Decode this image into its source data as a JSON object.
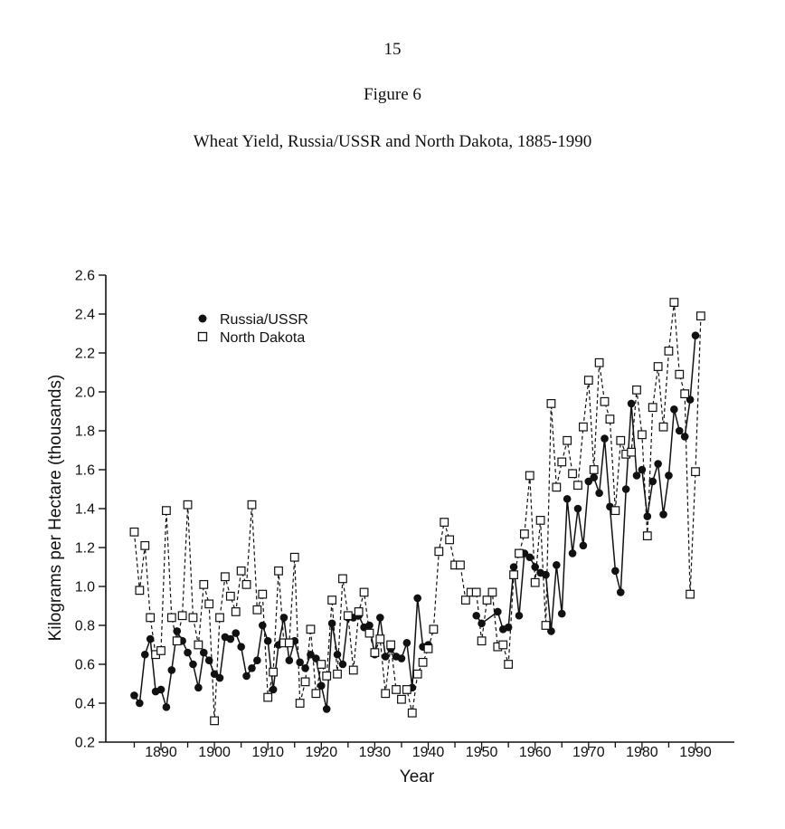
{
  "page": {
    "page_number": "15",
    "figure_label": "Figure 6",
    "figure_title": "Wheat Yield, Russia/USSR and North Dakota, 1885-1990"
  },
  "chart_data": {
    "type": "line",
    "title": "Wheat Yield, Russia/USSR and North Dakota, 1885-1990",
    "xlabel": "Year",
    "ylabel": "Kilograms per Hectare (thousands)",
    "xlim": [
      1880,
      1995
    ],
    "ylim": [
      0.2,
      2.6
    ],
    "x_ticks": [
      1890,
      1900,
      1910,
      1920,
      1930,
      1940,
      1950,
      1960,
      1970,
      1980,
      1990
    ],
    "x_tick_labels": [
      "1890",
      "1900",
      "1910",
      "1920",
      "1930",
      "1940",
      "1950",
      "1960",
      "1970",
      "1980",
      "1990"
    ],
    "y_ticks": [
      0.2,
      0.4,
      0.6,
      0.8,
      1.0,
      1.2,
      1.4,
      1.6,
      1.8,
      2.0,
      2.2,
      2.4,
      2.6
    ],
    "y_tick_labels": [
      "0.2",
      "0.4",
      "0.6",
      "0.8",
      "1.0",
      "1.2",
      "1.4",
      "1.6",
      "1.8",
      "2.0",
      "2.2",
      "2.4",
      "2.6"
    ],
    "legend_position": "top-left",
    "series": [
      {
        "name": "Russia/USSR",
        "marker": "filled-circle",
        "line": "solid",
        "color": "#111111",
        "points": [
          [
            1885,
            0.44
          ],
          [
            1886,
            0.4
          ],
          [
            1887,
            0.65
          ],
          [
            1888,
            0.73
          ],
          [
            1889,
            0.46
          ],
          [
            1890,
            0.47
          ],
          [
            1891,
            0.38
          ],
          [
            1892,
            0.57
          ],
          [
            1893,
            0.77
          ],
          [
            1894,
            0.72
          ],
          [
            1895,
            0.66
          ],
          [
            1896,
            0.6
          ],
          [
            1897,
            0.48
          ],
          [
            1898,
            0.66
          ],
          [
            1899,
            0.62
          ],
          [
            1900,
            0.55
          ],
          [
            1901,
            0.53
          ],
          [
            1902,
            0.74
          ],
          [
            1903,
            0.73
          ],
          [
            1904,
            0.76
          ],
          [
            1905,
            0.69
          ],
          [
            1906,
            0.54
          ],
          [
            1907,
            0.58
          ],
          [
            1908,
            0.62
          ],
          [
            1909,
            0.8
          ],
          [
            1910,
            0.72
          ],
          [
            1911,
            0.47
          ],
          [
            1912,
            0.7
          ],
          [
            1913,
            0.84
          ],
          [
            1914,
            0.62
          ],
          [
            1915,
            0.72
          ],
          [
            1916,
            0.61
          ],
          [
            1917,
            0.58
          ],
          [
            1918,
            0.65
          ],
          [
            1919,
            0.63
          ],
          [
            1920,
            0.49
          ],
          [
            1921,
            0.37
          ],
          [
            1922,
            0.81
          ],
          [
            1923,
            0.65
          ],
          [
            1924,
            0.6
          ],
          [
            1925,
            0.84
          ],
          [
            1926,
            0.84
          ],
          [
            1927,
            0.85
          ],
          [
            1928,
            0.79
          ],
          [
            1929,
            0.8
          ],
          [
            1930,
            0.65
          ],
          [
            1931,
            0.84
          ],
          [
            1932,
            0.64
          ],
          [
            1933,
            0.68
          ],
          [
            1934,
            0.64
          ],
          [
            1935,
            0.63
          ],
          [
            1936,
            0.71
          ],
          [
            1937,
            0.48
          ],
          [
            1938,
            0.94
          ],
          [
            1939,
            0.69
          ],
          [
            1940,
            0.7
          ],
          [
            1949,
            0.85
          ],
          [
            1950,
            0.81
          ],
          [
            1953,
            0.87
          ],
          [
            1954,
            0.78
          ],
          [
            1955,
            0.79
          ],
          [
            1956,
            1.1
          ],
          [
            1957,
            0.85
          ],
          [
            1958,
            1.17
          ],
          [
            1959,
            1.15
          ],
          [
            1960,
            1.1
          ],
          [
            1961,
            1.07
          ],
          [
            1962,
            1.06
          ],
          [
            1963,
            0.77
          ],
          [
            1964,
            1.11
          ],
          [
            1965,
            0.86
          ],
          [
            1966,
            1.45
          ],
          [
            1967,
            1.17
          ],
          [
            1968,
            1.4
          ],
          [
            1969,
            1.21
          ],
          [
            1970,
            1.54
          ],
          [
            1971,
            1.56
          ],
          [
            1972,
            1.48
          ],
          [
            1973,
            1.76
          ],
          [
            1974,
            1.41
          ],
          [
            1975,
            1.08
          ],
          [
            1976,
            0.97
          ],
          [
            1977,
            1.5
          ],
          [
            1978,
            1.94
          ],
          [
            1979,
            1.57
          ],
          [
            1980,
            1.6
          ],
          [
            1981,
            1.36
          ],
          [
            1982,
            1.54
          ],
          [
            1983,
            1.63
          ],
          [
            1984,
            1.37
          ],
          [
            1985,
            1.57
          ],
          [
            1986,
            1.91
          ],
          [
            1987,
            1.8
          ],
          [
            1988,
            1.77
          ],
          [
            1989,
            1.96
          ],
          [
            1990,
            2.29
          ]
        ]
      },
      {
        "name": "North Dakota",
        "marker": "open-square",
        "line": "dashed",
        "color": "#111111",
        "points": [
          [
            1885,
            1.28
          ],
          [
            1886,
            0.98
          ],
          [
            1887,
            1.21
          ],
          [
            1888,
            0.84
          ],
          [
            1889,
            0.65
          ],
          [
            1890,
            0.67
          ],
          [
            1891,
            1.39
          ],
          [
            1892,
            0.84
          ],
          [
            1893,
            0.72
          ],
          [
            1894,
            0.85
          ],
          [
            1895,
            1.42
          ],
          [
            1896,
            0.84
          ],
          [
            1897,
            0.7
          ],
          [
            1898,
            1.01
          ],
          [
            1899,
            0.91
          ],
          [
            1900,
            0.31
          ],
          [
            1901,
            0.84
          ],
          [
            1902,
            1.05
          ],
          [
            1903,
            0.95
          ],
          [
            1904,
            0.87
          ],
          [
            1905,
            1.08
          ],
          [
            1906,
            1.01
          ],
          [
            1907,
            1.42
          ],
          [
            1908,
            0.88
          ],
          [
            1909,
            0.96
          ],
          [
            1910,
            0.43
          ],
          [
            1911,
            0.56
          ],
          [
            1912,
            1.08
          ],
          [
            1913,
            0.71
          ],
          [
            1914,
            0.71
          ],
          [
            1915,
            1.15
          ],
          [
            1916,
            0.4
          ],
          [
            1917,
            0.51
          ],
          [
            1918,
            0.78
          ],
          [
            1919,
            0.45
          ],
          [
            1920,
            0.6
          ],
          [
            1921,
            0.54
          ],
          [
            1922,
            0.93
          ],
          [
            1923,
            0.55
          ],
          [
            1924,
            1.04
          ],
          [
            1925,
            0.85
          ],
          [
            1926,
            0.57
          ],
          [
            1927,
            0.87
          ],
          [
            1928,
            0.97
          ],
          [
            1929,
            0.76
          ],
          [
            1930,
            0.66
          ],
          [
            1931,
            0.73
          ],
          [
            1932,
            0.45
          ],
          [
            1933,
            0.7
          ],
          [
            1934,
            0.47
          ],
          [
            1935,
            0.42
          ],
          [
            1936,
            0.47
          ],
          [
            1937,
            0.35
          ],
          [
            1938,
            0.55
          ],
          [
            1939,
            0.61
          ],
          [
            1940,
            0.68
          ],
          [
            1941,
            0.78
          ],
          [
            1942,
            1.18
          ],
          [
            1943,
            1.33
          ],
          [
            1944,
            1.24
          ],
          [
            1945,
            1.11
          ],
          [
            1946,
            1.11
          ],
          [
            1947,
            0.93
          ],
          [
            1948,
            0.97
          ],
          [
            1949,
            0.97
          ],
          [
            1950,
            0.72
          ],
          [
            1951,
            0.93
          ],
          [
            1952,
            0.97
          ],
          [
            1953,
            0.69
          ],
          [
            1954,
            0.7
          ],
          [
            1955,
            0.6
          ],
          [
            1956,
            1.06
          ],
          [
            1957,
            1.17
          ],
          [
            1958,
            1.27
          ],
          [
            1959,
            1.57
          ],
          [
            1960,
            1.02
          ],
          [
            1961,
            1.34
          ],
          [
            1962,
            0.8
          ],
          [
            1963,
            1.94
          ],
          [
            1964,
            1.51
          ],
          [
            1965,
            1.64
          ],
          [
            1966,
            1.75
          ],
          [
            1967,
            1.58
          ],
          [
            1968,
            1.52
          ],
          [
            1969,
            1.82
          ],
          [
            1970,
            2.06
          ],
          [
            1971,
            1.6
          ],
          [
            1972,
            2.15
          ],
          [
            1973,
            1.95
          ],
          [
            1974,
            1.86
          ],
          [
            1975,
            1.39
          ],
          [
            1976,
            1.75
          ],
          [
            1977,
            1.68
          ],
          [
            1978,
            1.69
          ],
          [
            1979,
            2.01
          ],
          [
            1980,
            1.78
          ],
          [
            1981,
            1.26
          ],
          [
            1982,
            1.92
          ],
          [
            1983,
            2.13
          ],
          [
            1984,
            1.82
          ],
          [
            1985,
            2.21
          ],
          [
            1986,
            2.46
          ],
          [
            1987,
            2.09
          ],
          [
            1988,
            1.99
          ],
          [
            1989,
            0.96
          ],
          [
            1990,
            1.59
          ],
          [
            1991,
            2.39
          ]
        ]
      }
    ]
  }
}
